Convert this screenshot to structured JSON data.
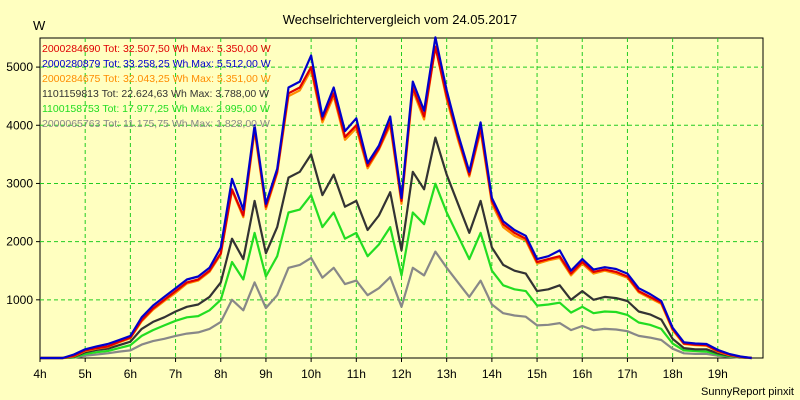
{
  "chart_data": {
    "type": "line",
    "title": "Wechselrichtervergleich vom 24.05.2017",
    "ylabel": "W",
    "xlabel": "",
    "footer": "SunnyReport pinxit",
    "ylim": [
      0,
      5500
    ],
    "xlim": [
      4.0,
      20.0
    ],
    "grid": true,
    "legend_placement": "top-left",
    "x_ticks": [
      {
        "v": 4,
        "label": "4h"
      },
      {
        "v": 5,
        "label": "5h"
      },
      {
        "v": 6,
        "label": "6h"
      },
      {
        "v": 7,
        "label": "7h"
      },
      {
        "v": 8,
        "label": "8h"
      },
      {
        "v": 9,
        "label": "9h"
      },
      {
        "v": 10,
        "label": "10h"
      },
      {
        "v": 11,
        "label": "11h"
      },
      {
        "v": 12,
        "label": "12h"
      },
      {
        "v": 13,
        "label": "13h"
      },
      {
        "v": 14,
        "label": "14h"
      },
      {
        "v": 15,
        "label": "15h"
      },
      {
        "v": 16,
        "label": "16h"
      },
      {
        "v": 17,
        "label": "17h"
      },
      {
        "v": 18,
        "label": "18h"
      },
      {
        "v": 19,
        "label": "19h"
      }
    ],
    "y_ticks": [
      {
        "v": 1000,
        "label": "1000"
      },
      {
        "v": 2000,
        "label": "2000"
      },
      {
        "v": 3000,
        "label": "3000"
      },
      {
        "v": 4000,
        "label": "4000"
      },
      {
        "v": 5000,
        "label": "5000"
      }
    ],
    "x": [
      4.0,
      4.5,
      4.75,
      5.0,
      5.25,
      5.5,
      5.75,
      6.0,
      6.25,
      6.5,
      6.75,
      7.0,
      7.25,
      7.5,
      7.75,
      8.0,
      8.25,
      8.5,
      8.75,
      9.0,
      9.25,
      9.5,
      9.75,
      10.0,
      10.25,
      10.5,
      10.75,
      11.0,
      11.25,
      11.5,
      11.75,
      12.0,
      12.25,
      12.5,
      12.75,
      13.0,
      13.25,
      13.5,
      13.75,
      14.0,
      14.25,
      14.5,
      14.75,
      15.0,
      15.25,
      15.5,
      15.75,
      16.0,
      16.25,
      16.5,
      16.75,
      17.0,
      17.25,
      17.5,
      17.75,
      18.0,
      18.25,
      18.5,
      18.75,
      19.0,
      19.25,
      19.5,
      19.75
    ],
    "series": [
      {
        "name": "2000284690 Tot: 32.507,50 Wh Max: 5.350,00 W",
        "color": "#e00000",
        "values": [
          0,
          0,
          40,
          130,
          170,
          200,
          280,
          350,
          650,
          850,
          1000,
          1150,
          1300,
          1350,
          1500,
          1800,
          2900,
          2450,
          3950,
          2600,
          3200,
          4550,
          4650,
          5000,
          4100,
          4550,
          3800,
          4000,
          3300,
          3600,
          4050,
          2700,
          4650,
          4150,
          5350,
          4500,
          3800,
          3150,
          3950,
          2700,
          2300,
          2150,
          2050,
          1650,
          1700,
          1750,
          1450,
          1650,
          1480,
          1520,
          1480,
          1400,
          1150,
          1050,
          950,
          500,
          250,
          230,
          220,
          120,
          60,
          20,
          0
        ]
      },
      {
        "name": "2000280879 Tot: 33.258,25 Wh Max: 5.512,00 W",
        "color": "#0000cc",
        "values": [
          0,
          0,
          60,
          150,
          200,
          240,
          310,
          380,
          700,
          900,
          1050,
          1200,
          1350,
          1400,
          1550,
          1900,
          3080,
          2550,
          4000,
          2650,
          3250,
          4650,
          4750,
          5200,
          4150,
          4650,
          3900,
          4120,
          3350,
          3650,
          4150,
          2750,
          4750,
          4250,
          5512,
          4600,
          3850,
          3200,
          4050,
          2750,
          2350,
          2200,
          2100,
          1700,
          1750,
          1850,
          1500,
          1700,
          1520,
          1560,
          1530,
          1450,
          1200,
          1100,
          980,
          520,
          270,
          250,
          240,
          140,
          70,
          25,
          0
        ]
      },
      {
        "name": "2000284675 Tot: 32.043,25 Wh Max: 5.351,00 W",
        "color": "#ff8c00",
        "values": [
          0,
          0,
          30,
          120,
          160,
          190,
          270,
          340,
          630,
          830,
          980,
          1120,
          1280,
          1330,
          1480,
          1780,
          2880,
          2420,
          3900,
          2560,
          3180,
          4500,
          4600,
          4950,
          4050,
          4500,
          3750,
          3950,
          3260,
          3580,
          4000,
          2650,
          4600,
          4100,
          5351,
          4450,
          3750,
          3120,
          3900,
          2650,
          2250,
          2100,
          2020,
          1620,
          1680,
          1720,
          1420,
          1620,
          1450,
          1500,
          1450,
          1380,
          1130,
          1030,
          930,
          480,
          240,
          220,
          210,
          110,
          50,
          15,
          0
        ]
      },
      {
        "name": "1101159813 Tot: 22.624,63 Wh Max: 3.788,00 W",
        "color": "#333333",
        "values": [
          0,
          0,
          20,
          100,
          140,
          160,
          220,
          280,
          500,
          620,
          700,
          800,
          880,
          920,
          1050,
          1300,
          2050,
          1700,
          2700,
          1800,
          2250,
          3100,
          3200,
          3500,
          2800,
          3150,
          2600,
          2700,
          2200,
          2450,
          2850,
          1850,
          3200,
          2900,
          3788,
          3150,
          2650,
          2150,
          2700,
          1900,
          1600,
          1500,
          1450,
          1150,
          1180,
          1250,
          1000,
          1150,
          1000,
          1050,
          1030,
          980,
          800,
          750,
          660,
          330,
          170,
          150,
          150,
          80,
          40,
          10,
          0
        ]
      },
      {
        "name": "1100158753 Tot: 17.977,25 Wh Max: 2.995,00 W",
        "color": "#22dd22",
        "values": [
          0,
          0,
          10,
          70,
          100,
          120,
          170,
          220,
          380,
          480,
          560,
          640,
          700,
          720,
          820,
          1000,
          1650,
          1350,
          2150,
          1400,
          1750,
          2500,
          2550,
          2800,
          2250,
          2500,
          2050,
          2150,
          1750,
          1950,
          2250,
          1420,
          2500,
          2300,
          2995,
          2500,
          2100,
          1700,
          2150,
          1500,
          1250,
          1180,
          1150,
          900,
          920,
          950,
          780,
          880,
          770,
          800,
          790,
          740,
          610,
          570,
          500,
          250,
          130,
          120,
          110,
          60,
          30,
          10,
          0
        ]
      },
      {
        "name": "2000065763 Tot: 11.175,75 Wh Max: 1.828,00 W",
        "color": "#888888",
        "values": [
          0,
          0,
          5,
          40,
          60,
          80,
          110,
          130,
          230,
          290,
          330,
          380,
          420,
          440,
          500,
          620,
          1000,
          820,
          1300,
          860,
          1080,
          1550,
          1600,
          1720,
          1380,
          1550,
          1270,
          1330,
          1080,
          1200,
          1390,
          880,
          1550,
          1420,
          1828,
          1550,
          1300,
          1050,
          1330,
          920,
          770,
          730,
          710,
          560,
          570,
          600,
          480,
          550,
          480,
          500,
          490,
          460,
          380,
          350,
          310,
          160,
          80,
          70,
          70,
          40,
          20,
          5,
          0
        ]
      }
    ]
  }
}
